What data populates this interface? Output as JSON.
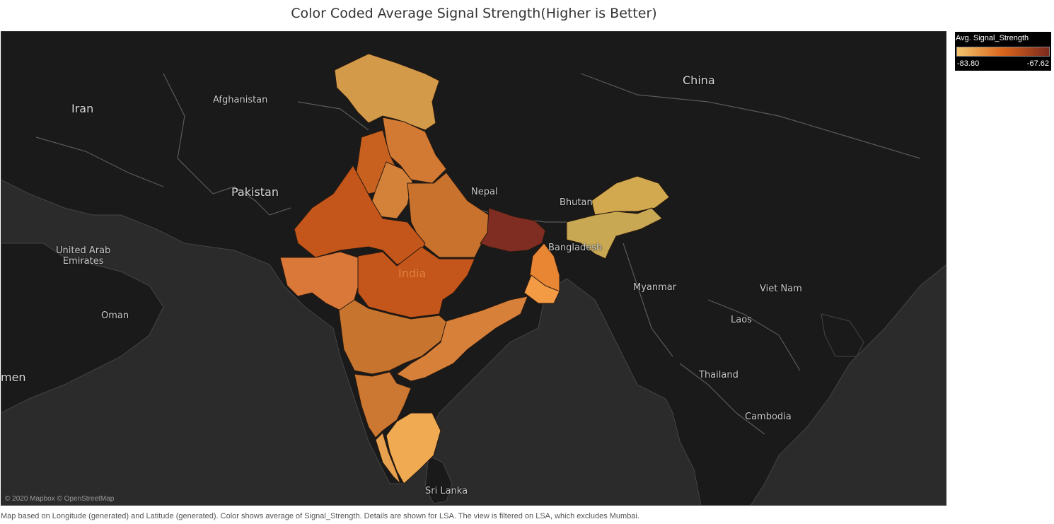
{
  "title": "Color Coded Average Signal Strength(Higher is Better)",
  "legend": {
    "title": "Avg. Signal_Strength",
    "min": "-83.80",
    "max": "-67.62",
    "color_low": "#f2c46c",
    "color_mid": "#d9641c",
    "color_high": "#7b2a1e"
  },
  "map": {
    "attribution": "© 2020 Mapbox © OpenStreetMap",
    "background": "#2b2b2b",
    "land_color": "#1c1c1c",
    "place_labels": {
      "iran": "Iran",
      "afghanistan": "Afghanistan",
      "pakistan": "Pakistan",
      "china": "China",
      "nepal": "Nepal",
      "bhutan": "Bhutan",
      "bangladesh": "Bangladesh",
      "india": "India",
      "uae": "United Arab\nEmirates",
      "oman": "Oman",
      "myanmar": "Myanmar",
      "vietnam": "Viet Nam",
      "laos": "Laos",
      "thailand": "Thailand",
      "cambodia": "Cambodia",
      "srilanka": "Sri Lanka",
      "yemen_partial": "men"
    },
    "regions": [
      {
        "id": "jammu-kashmir",
        "color": "#d39a4a"
      },
      {
        "id": "himachal",
        "color": "#d27a34"
      },
      {
        "id": "punjab",
        "color": "#c8611f"
      },
      {
        "id": "haryana",
        "color": "#d4823a"
      },
      {
        "id": "up-west",
        "color": "#c9722e"
      },
      {
        "id": "rajasthan",
        "color": "#c4561b"
      },
      {
        "id": "gujarat",
        "color": "#d97838"
      },
      {
        "id": "madhya-pradesh",
        "color": "#c4561b"
      },
      {
        "id": "bihar",
        "color": "#7f2d22"
      },
      {
        "id": "west-bengal",
        "color": "#e88634"
      },
      {
        "id": "kolkata",
        "color": "#f39a45"
      },
      {
        "id": "northeast",
        "color": "#d2a94f"
      },
      {
        "id": "assam",
        "color": "#c9a853"
      },
      {
        "id": "maharashtra",
        "color": "#c7752e"
      },
      {
        "id": "andhra",
        "color": "#d7803a"
      },
      {
        "id": "karnataka",
        "color": "#cc7732"
      },
      {
        "id": "kerala",
        "color": "#e8a14f"
      },
      {
        "id": "tamil-nadu",
        "color": "#f0aa52"
      }
    ]
  },
  "caption": "Map based on Longitude (generated) and Latitude (generated).  Color shows average of Signal_Strength.  Details are shown for LSA. The view is filtered on LSA, which excludes Mumbai."
}
